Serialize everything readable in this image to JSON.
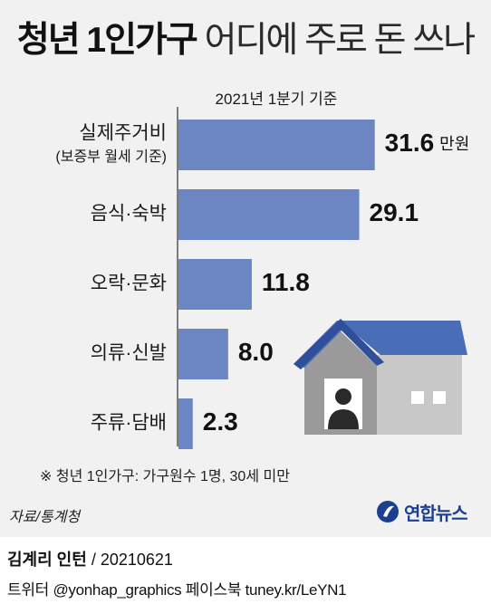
{
  "title": {
    "bold": "청년 1인가구",
    "light": "어디에 주로 돈 쓰나"
  },
  "subtitle": "2021년 1분기 기준",
  "chart_data": {
    "type": "bar",
    "orientation": "horizontal",
    "categories": [
      [
        "실제주거비",
        "(보증부 월세 기준)"
      ],
      [
        "음식·숙박"
      ],
      [
        "오락·문화"
      ],
      [
        "의류·신발"
      ],
      [
        "주류·담배"
      ]
    ],
    "values": [
      31.6,
      29.1,
      11.8,
      8.0,
      2.3
    ],
    "value_labels": [
      "31.6",
      "29.1",
      "11.8",
      "8.0",
      "2.3"
    ],
    "unit": "만원",
    "xlim": [
      0,
      35
    ],
    "bar_color": "#6c86c4",
    "grid": false
  },
  "footnote": "※ 청년 1인가구: 가구원수 1명, 30세  미만",
  "source": "자료/통계청",
  "logo": {
    "text": "연합뉴스",
    "color": "#1d3f8f"
  },
  "credit": {
    "name": "김계리 인턴",
    "date": " / 20210621"
  },
  "social": "트위터 @yonhap_graphics  페이스북 tuney.kr/LeYN1",
  "illustration": {
    "icon": "house-with-person-icon",
    "roof_color": "#4a6db8",
    "wall_color": "#9a9a9a",
    "side_color": "#c8c8c8"
  }
}
